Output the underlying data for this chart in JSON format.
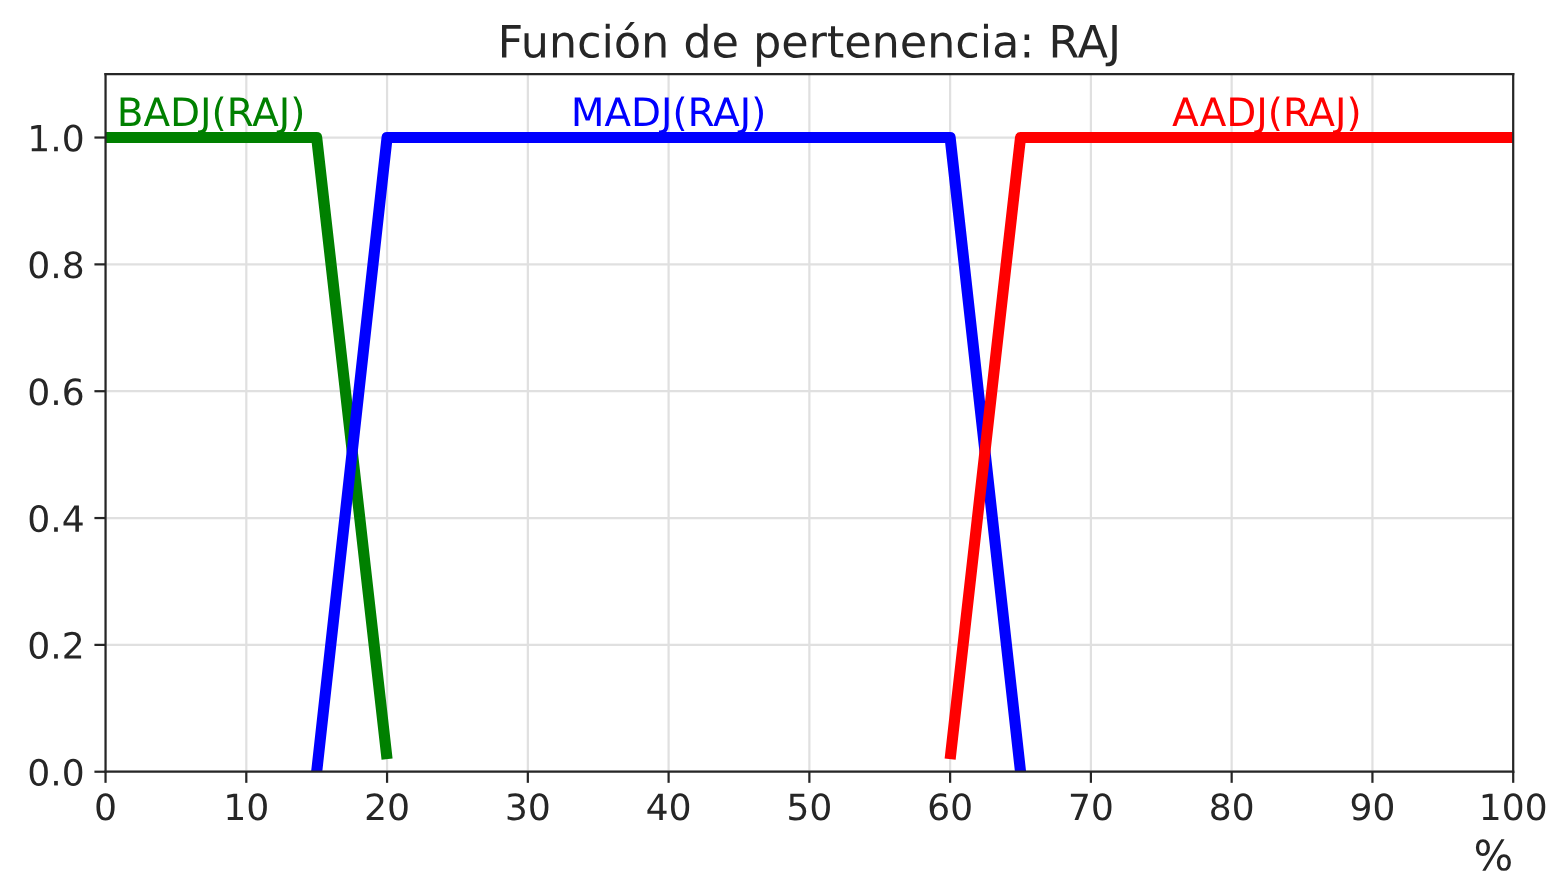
{
  "chart_data": {
    "type": "line",
    "title": "Función de pertenencia: RAJ",
    "xlabel": "%",
    "series": [
      {
        "name": "BADJ(RAJ)",
        "color": "#008000",
        "x": [
          0,
          15,
          20
        ],
        "values": [
          1.0,
          1.0,
          0.02
        ]
      },
      {
        "name": "MADJ(RAJ)",
        "color": "#0000ff",
        "x": [
          15,
          20,
          60,
          65
        ],
        "values": [
          0.0,
          1.0,
          1.0,
          0.0
        ]
      },
      {
        "name": "AADJ(RAJ)",
        "color": "#ff0000",
        "x": [
          60,
          65,
          100
        ],
        "values": [
          0.02,
          1.0,
          1.0
        ]
      }
    ],
    "xlim": [
      0,
      100
    ],
    "xticks": [
      0,
      10,
      20,
      30,
      40,
      50,
      60,
      70,
      80,
      90,
      100
    ],
    "ylim": [
      0,
      1.1
    ],
    "yticks": [
      {
        "value": 0,
        "label": "0.0"
      },
      0.2,
      0.4,
      0.6,
      0.8,
      {
        "value": 1,
        "label": "1.0"
      }
    ],
    "grid": true,
    "line_style": "solid",
    "marker": "none"
  }
}
